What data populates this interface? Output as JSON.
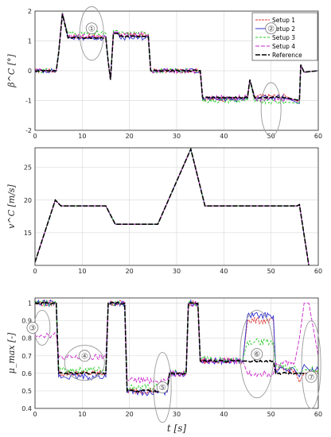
{
  "chart_data": [
    {
      "type": "line",
      "ylabel": "β^C [°]",
      "xlim": [
        0,
        60
      ],
      "ylim": [
        -2,
        2
      ],
      "xticks": [
        0,
        10,
        20,
        30,
        40,
        50,
        60
      ],
      "yticks": [
        -2,
        -1,
        0,
        1,
        2
      ],
      "grid": true,
      "legend_position": "top-right",
      "x": [
        0,
        4.5,
        5,
        5.8,
        7,
        15,
        15.5,
        16,
        16.6,
        17.5,
        18,
        24,
        24.5,
        35,
        35.5,
        45,
        45.5,
        46.5,
        53,
        56,
        56.3,
        57,
        60
      ],
      "series": [
        {
          "name": "Setup 1",
          "color": "#e03030",
          "values": [
            0,
            0,
            0.6,
            1.95,
            1.15,
            1.15,
            0.3,
            -0.3,
            1.3,
            1.3,
            1.2,
            1.2,
            0,
            0,
            -0.95,
            -0.95,
            -0.3,
            -0.85,
            -0.85,
            -1.05,
            0.2,
            -0.05,
            0
          ]
        },
        {
          "name": "Setup 2",
          "color": "#3030d0",
          "values": [
            0,
            0,
            0.6,
            1.95,
            1.1,
            1.1,
            0.3,
            -0.3,
            1.3,
            1.3,
            1.1,
            1.1,
            0,
            0,
            -0.95,
            -0.95,
            -0.3,
            -0.9,
            -0.9,
            -1.1,
            0.2,
            -0.05,
            0
          ]
        },
        {
          "name": "Setup 3",
          "color": "#22cc22",
          "values": [
            0,
            0,
            0.6,
            1.95,
            1.25,
            1.25,
            0.3,
            -0.3,
            1.35,
            1.35,
            1.25,
            1.25,
            0,
            0,
            -1.0,
            -1.0,
            -0.3,
            -1.05,
            -1.05,
            -1.1,
            0.2,
            -0.05,
            0
          ]
        },
        {
          "name": "Setup 4",
          "color": "#cc22cc",
          "values": [
            0,
            0,
            0.6,
            1.95,
            1.15,
            1.15,
            0.3,
            -0.3,
            1.3,
            1.3,
            1.2,
            1.2,
            0,
            0,
            -0.9,
            -0.9,
            -0.3,
            -0.95,
            -0.95,
            -1.0,
            0.2,
            -0.05,
            0
          ]
        },
        {
          "name": "Reference",
          "color": "#000000",
          "values": [
            0,
            0,
            0.6,
            1.9,
            1.1,
            1.1,
            0.3,
            -0.3,
            1.25,
            1.25,
            1.15,
            1.15,
            0,
            0,
            -0.9,
            -0.9,
            -0.3,
            -0.9,
            -0.9,
            -1.0,
            0.2,
            -0.05,
            0
          ]
        }
      ],
      "annotations": [
        "①",
        "②"
      ]
    },
    {
      "type": "line",
      "ylabel": "v^C [m/s]",
      "xlim": [
        0,
        60
      ],
      "ylim": [
        10,
        28
      ],
      "xticks": [
        0,
        10,
        20,
        30,
        40,
        50,
        60
      ],
      "yticks": [
        15,
        20,
        25
      ],
      "grid": true,
      "x": [
        0,
        4.3,
        5.5,
        15,
        17,
        26,
        33,
        36,
        55.5,
        56,
        58
      ],
      "series": [
        {
          "name": "Setup 1",
          "color": "#e03030",
          "values": [
            10.5,
            20,
            19.1,
            19.1,
            16.3,
            16.3,
            27.8,
            19.1,
            19.1,
            19.3,
            10
          ]
        },
        {
          "name": "Setup 2",
          "color": "#3030d0",
          "values": [
            10.5,
            20,
            19.1,
            19.1,
            16.3,
            16.3,
            27.8,
            19.1,
            19.1,
            19.3,
            10
          ]
        },
        {
          "name": "Setup 3",
          "color": "#22cc22",
          "values": [
            10.5,
            20,
            19.1,
            19.1,
            16.3,
            16.3,
            27.8,
            19.1,
            19.1,
            19.3,
            10
          ]
        },
        {
          "name": "Setup 4",
          "color": "#cc22cc",
          "values": [
            10.5,
            20,
            19.1,
            19.1,
            16.3,
            16.3,
            27.8,
            19.1,
            19.1,
            19.3,
            10
          ]
        },
        {
          "name": "Reference",
          "color": "#000000",
          "values": [
            10.5,
            20,
            19.1,
            19.1,
            16.3,
            16.3,
            27.8,
            19.1,
            19.1,
            19.3,
            10
          ]
        }
      ]
    },
    {
      "type": "line",
      "ylabel": "μ_max [-]",
      "xlabel": "t [s]",
      "xlim": [
        0,
        60
      ],
      "ylim": [
        0.4,
        1.03
      ],
      "xticks": [
        0,
        10,
        20,
        30,
        40,
        50,
        60
      ],
      "yticks": [
        0.4,
        0.5,
        0.6,
        0.7,
        0.8,
        0.9,
        1
      ],
      "grid": true,
      "x": [
        0,
        4.5,
        5,
        15,
        15.5,
        19,
        19.5,
        28,
        28.5,
        32,
        32.5,
        34.5,
        35,
        44,
        45,
        50.5,
        51,
        55,
        56,
        57,
        58,
        60
      ],
      "series": [
        {
          "name": "Setup 1",
          "color": "#e03030",
          "values": [
            1,
            1,
            0.6,
            0.6,
            1,
            1,
            0.5,
            0.5,
            0.6,
            0.6,
            1,
            1,
            0.67,
            0.67,
            0.9,
            0.9,
            0.62,
            0.62,
            0.55,
            0.6,
            0.6,
            0.6
          ]
        },
        {
          "name": "Setup 2",
          "color": "#3030d0",
          "values": [
            1,
            1,
            0.58,
            0.58,
            1,
            1,
            0.49,
            0.49,
            0.6,
            0.6,
            1,
            1,
            0.67,
            0.67,
            0.93,
            0.93,
            0.62,
            0.62,
            0.58,
            0.65,
            0.62,
            0.62
          ]
        },
        {
          "name": "Setup 3",
          "color": "#22cc22",
          "values": [
            1,
            1,
            0.62,
            0.62,
            1,
            1,
            0.52,
            0.52,
            0.6,
            0.6,
            1,
            1,
            0.68,
            0.68,
            0.78,
            0.78,
            0.64,
            0.64,
            0.6,
            0.62,
            0.62,
            0.62
          ]
        },
        {
          "name": "Setup 4",
          "color": "#cc22cc",
          "values": [
            0.82,
            0.82,
            0.69,
            0.69,
            1,
            1,
            0.56,
            0.56,
            0.6,
            0.6,
            1,
            1,
            0.67,
            0.67,
            0.6,
            0.6,
            0.66,
            0.66,
            0.8,
            1,
            1,
            0.7
          ]
        },
        {
          "name": "Reference",
          "color": "#000000",
          "values": [
            1,
            1,
            0.6,
            0.6,
            1,
            1,
            0.5,
            0.5,
            0.6,
            0.6,
            1,
            1,
            0.67,
            0.67,
            0.67,
            0.67,
            0.6,
            0.6,
            0.6,
            0.6,
            0.6,
            0.6
          ]
        }
      ],
      "annotations": [
        "③",
        "④",
        "⑤",
        "⑥",
        "⑦"
      ]
    }
  ]
}
